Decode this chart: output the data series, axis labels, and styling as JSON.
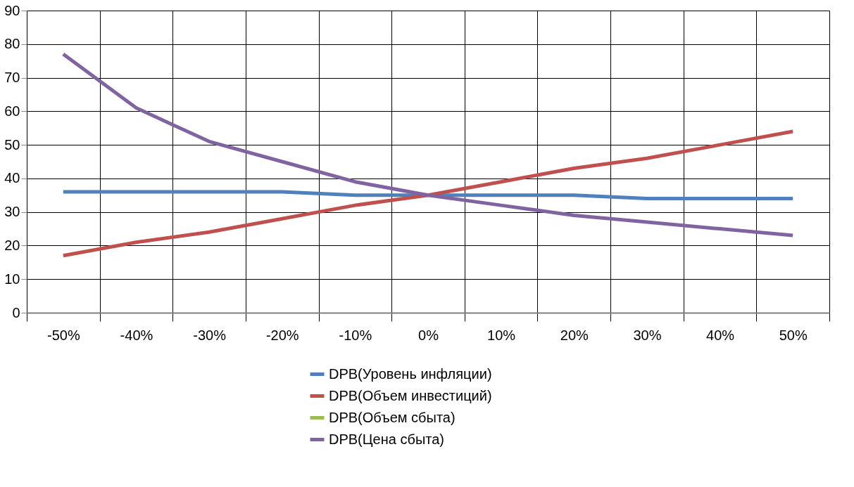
{
  "chart_data": {
    "type": "line",
    "categories": [
      "-50%",
      "-40%",
      "-30%",
      "-20%",
      "-10%",
      "0%",
      "10%",
      "20%",
      "30%",
      "40%",
      "50%"
    ],
    "ylim": [
      0,
      90
    ],
    "yticks": [
      0,
      10,
      20,
      30,
      40,
      50,
      60,
      70,
      80,
      90
    ],
    "grid": true,
    "legend": "bottom",
    "marker": "none",
    "line_style": "solid",
    "series": [
      {
        "name": "DPB(Уровень инфляции)",
        "color": "#4f81bd",
        "values": [
          36,
          36,
          36,
          36,
          35,
          35,
          35,
          35,
          34,
          34,
          34
        ]
      },
      {
        "name": "DPB(Объем инвестиций)",
        "color": "#c0504d",
        "values": [
          17,
          21,
          24,
          28,
          32,
          35,
          39,
          43,
          46,
          50,
          54
        ]
      },
      {
        "name": "DPB(Объем сбыта)",
        "color": "#9bbb59",
        "values": [
          null,
          null,
          null,
          null,
          null,
          null,
          null,
          null,
          null,
          null,
          null
        ]
      },
      {
        "name": "DPB(Цена сбыта)",
        "color": "#8064a2",
        "values": [
          77,
          61,
          51,
          45,
          39,
          35,
          32,
          29,
          27,
          25,
          23
        ]
      }
    ]
  }
}
